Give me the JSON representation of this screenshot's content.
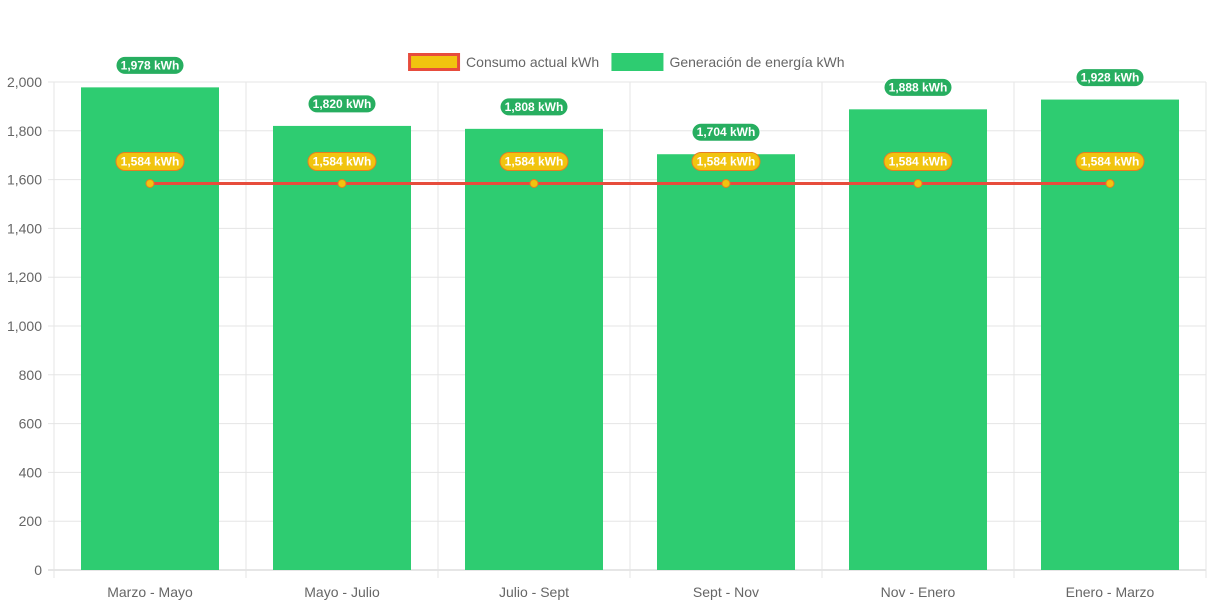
{
  "chart_data": {
    "type": "bar",
    "categories": [
      "Marzo - Mayo",
      "Mayo - Julio",
      "Julio - Sept",
      "Sept - Nov",
      "Nov - Enero",
      "Enero - Marzo"
    ],
    "series": [
      {
        "name": "Generación de energía kWh",
        "type": "bar",
        "color": "#2ecc71",
        "values": [
          1978,
          1820,
          1808,
          1704,
          1888,
          1928
        ],
        "data_labels": [
          "1,978 kWh",
          "1,820 kWh",
          "1,808 kWh",
          "1,704 kWh",
          "1,888 kWh",
          "1,928 kWh"
        ]
      },
      {
        "name": "Consumo actual kWh",
        "type": "line",
        "color": "#e74c3c",
        "point_color": "#f1c40f",
        "values": [
          1584,
          1584,
          1584,
          1584,
          1584,
          1584
        ],
        "data_labels": [
          "1,584 kWh",
          "1,584 kWh",
          "1,584 kWh",
          "1,584 kWh",
          "1,584 kWh",
          "1,584 kWh"
        ]
      }
    ],
    "ylim": [
      0,
      2000
    ],
    "y_ticks": [
      0,
      200,
      400,
      600,
      800,
      1000,
      1200,
      1400,
      1600,
      1800,
      2000
    ],
    "y_tick_labels": [
      "0",
      "200",
      "400",
      "600",
      "800",
      "1,000",
      "1,200",
      "1,400",
      "1,600",
      "1,800",
      "2,000"
    ],
    "legend": {
      "position": "top",
      "items": [
        "Consumo actual kWh",
        "Generación de energía kWh"
      ]
    },
    "grid": true,
    "colors": {
      "grid": "#e5e5e5",
      "bar": "#2ecc71",
      "bar_badge": "#27ae60",
      "line": "#e74c3c",
      "line_badge": "#f1c40f",
      "line_badge_border": "#e67e22"
    }
  }
}
